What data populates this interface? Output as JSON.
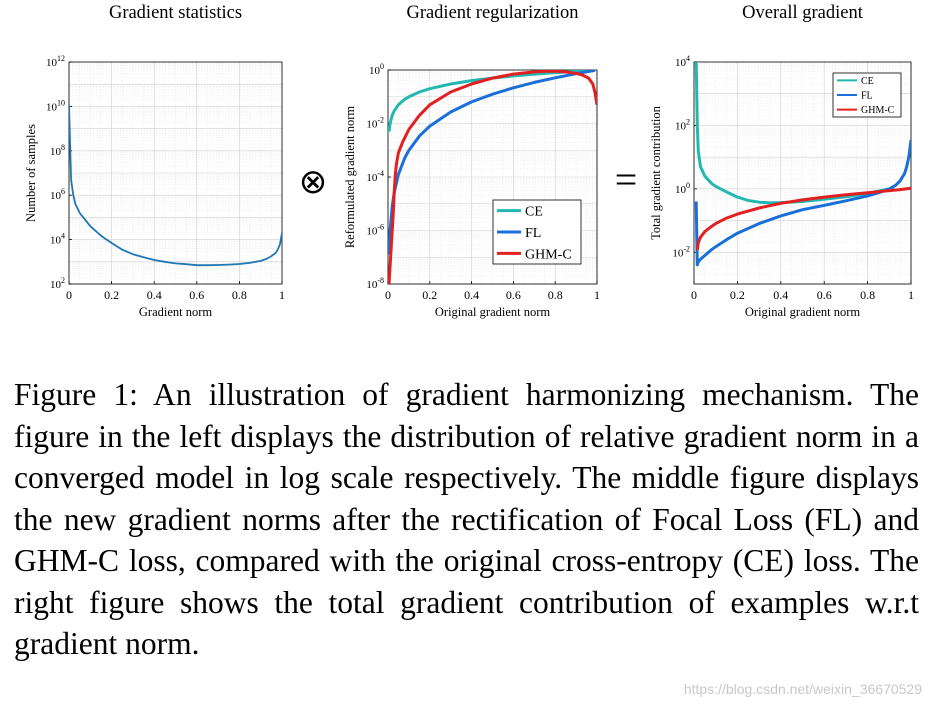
{
  "chart_data": [
    {
      "type": "line",
      "title": "Gradient statistics",
      "xlabel": "Gradient norm",
      "ylabel": "Number of samples",
      "xlim": [
        0,
        1
      ],
      "ylim": [
        100,
        1000000000000
      ],
      "yscale": "log",
      "xticks": [
        "0",
        "0.2",
        "0.4",
        "0.6",
        "0.8",
        "1"
      ],
      "yticks": [
        "10^2",
        "10^4",
        "10^6",
        "10^8",
        "10^10",
        "10^12"
      ],
      "grid": true,
      "series": [
        {
          "color": "#1f77b4",
          "x": [
            0.0,
            0.01,
            0.02,
            0.03,
            0.05,
            0.08,
            0.1,
            0.15,
            0.2,
            0.25,
            0.3,
            0.35,
            0.4,
            0.45,
            0.5,
            0.55,
            0.6,
            0.65,
            0.7,
            0.75,
            0.8,
            0.85,
            0.9,
            0.93,
            0.95,
            0.97,
            0.98,
            0.99,
            1.0
          ],
          "y": [
            12000000000,
            5000000,
            1000000,
            400000,
            160000,
            70000,
            40000,
            15000,
            7000,
            3500,
            2200,
            1600,
            1200,
            1000,
            850,
            780,
            700,
            700,
            720,
            750,
            800,
            900,
            1100,
            1400,
            1800,
            2500,
            3500,
            6000,
            20000
          ]
        }
      ]
    },
    {
      "type": "line",
      "title": "Gradient regularization",
      "xlabel": "Original gradient norm",
      "ylabel": "Reformulated gradient norm",
      "xlim": [
        0,
        1
      ],
      "ylim": [
        1e-08,
        1
      ],
      "yscale": "log",
      "xticks": [
        "0",
        "0.2",
        "0.4",
        "0.6",
        "0.8",
        "1"
      ],
      "yticks": [
        "10^-8",
        "10^-6",
        "10^-4",
        "10^-2",
        "10^0"
      ],
      "grid": true,
      "legend_position": "bottom-right",
      "series": [
        {
          "name": "CE",
          "color": "#22b8b0",
          "x": [
            0.005,
            0.01,
            0.02,
            0.03,
            0.05,
            0.08,
            0.1,
            0.15,
            0.2,
            0.3,
            0.4,
            0.5,
            0.6,
            0.7,
            0.8,
            0.9,
            0.95,
            0.99
          ],
          "y": [
            0.005,
            0.01,
            0.02,
            0.03,
            0.05,
            0.08,
            0.1,
            0.15,
            0.2,
            0.3,
            0.4,
            0.5,
            0.6,
            0.7,
            0.8,
            0.9,
            0.95,
            0.99
          ]
        },
        {
          "name": "FL",
          "color": "#1a6fd8",
          "x": [
            0.005,
            0.01,
            0.02,
            0.03,
            0.05,
            0.08,
            0.1,
            0.15,
            0.2,
            0.3,
            0.4,
            0.5,
            0.6,
            0.7,
            0.8,
            0.9,
            0.95,
            0.99
          ],
          "y": [
            1.25e-07,
            1e-06,
            8e-06,
            2.7e-05,
            0.000125,
            0.000512,
            0.001,
            0.003375,
            0.008,
            0.027,
            0.064,
            0.125,
            0.216,
            0.343,
            0.512,
            0.729,
            0.857,
            0.97
          ]
        },
        {
          "name": "GHM-C",
          "color": "#e32020",
          "x": [
            0.005,
            0.015,
            0.02,
            0.025,
            0.03,
            0.035,
            0.04,
            0.05,
            0.07,
            0.1,
            0.15,
            0.2,
            0.3,
            0.4,
            0.5,
            0.6,
            0.7,
            0.75,
            0.8,
            0.85,
            0.9,
            0.93,
            0.96,
            0.98,
            0.99,
            1.0
          ],
          "y": [
            1e-08,
            2e-07,
            1e-06,
            4e-06,
            3e-05,
            0.00012,
            0.0003,
            0.0008,
            0.002,
            0.006,
            0.02,
            0.05,
            0.15,
            0.3,
            0.5,
            0.7,
            0.85,
            0.9,
            0.9,
            0.85,
            0.75,
            0.65,
            0.5,
            0.3,
            0.15,
            0.05
          ]
        }
      ]
    },
    {
      "type": "line",
      "title": "Overall gradient",
      "xlabel": "Original gradient norm",
      "ylabel": "Total gradient contribution",
      "xlim": [
        0,
        1
      ],
      "ylim": [
        0.001,
        10000
      ],
      "yscale": "log",
      "xticks": [
        "0",
        "0.2",
        "0.4",
        "0.6",
        "0.8",
        "1"
      ],
      "yticks": [
        "10^-2",
        "10^0",
        "10^2",
        "10^4"
      ],
      "grid": true,
      "legend_position": "top-right",
      "series": [
        {
          "name": "CE",
          "color": "#22b8b0",
          "x": [
            0.01,
            0.015,
            0.02,
            0.03,
            0.05,
            0.08,
            0.1,
            0.15,
            0.2,
            0.25,
            0.3,
            0.35,
            0.4,
            0.5,
            0.6,
            0.7,
            0.8,
            0.85,
            0.9,
            0.92
          ],
          "y": [
            10000,
            100,
            15,
            5,
            2.5,
            1.5,
            1.2,
            0.8,
            0.55,
            0.43,
            0.38,
            0.36,
            0.37,
            0.4,
            0.47,
            0.56,
            0.72,
            0.85,
            1.0,
            1.1
          ]
        },
        {
          "name": "FL",
          "color": "#1a6fd8",
          "x": [
            0.01,
            0.015,
            0.02,
            0.03,
            0.05,
            0.08,
            0.1,
            0.15,
            0.2,
            0.3,
            0.4,
            0.5,
            0.6,
            0.7,
            0.8,
            0.85,
            0.9,
            0.93,
            0.95,
            0.97,
            0.98,
            0.99,
            1.0
          ],
          "y": [
            0.4,
            0.004,
            0.005,
            0.006,
            0.008,
            0.012,
            0.015,
            0.025,
            0.04,
            0.08,
            0.14,
            0.22,
            0.3,
            0.42,
            0.6,
            0.75,
            1.0,
            1.3,
            1.8,
            3.0,
            5.0,
            10.0,
            35.0
          ]
        },
        {
          "name": "GHM-C",
          "color": "#e32020",
          "x": [
            0.015,
            0.02,
            0.03,
            0.05,
            0.08,
            0.1,
            0.15,
            0.2,
            0.3,
            0.4,
            0.5,
            0.6,
            0.7,
            0.8,
            0.9,
            0.95,
            1.0
          ],
          "y": [
            0.012,
            0.02,
            0.03,
            0.045,
            0.065,
            0.08,
            0.12,
            0.16,
            0.25,
            0.35,
            0.45,
            0.55,
            0.65,
            0.75,
            0.88,
            0.95,
            1.05
          ]
        }
      ]
    }
  ],
  "operators": {
    "otimes": "⊗",
    "equals": "="
  },
  "caption": "Figure 1: An illustration of gradient harmonizing mechanism. The figure in the left displays the distribution of relative gradient norm in a converged model in log scale respectively. The middle figure displays the new gradient norms after the rectification of Focal Loss (FL) and GHM-C loss, compared with the original cross-entropy (CE) loss. The right figure shows the total gradient contribution of examples w.r.t gradient norm.",
  "watermark": "https://blog.csdn.net/weixin_36670529"
}
